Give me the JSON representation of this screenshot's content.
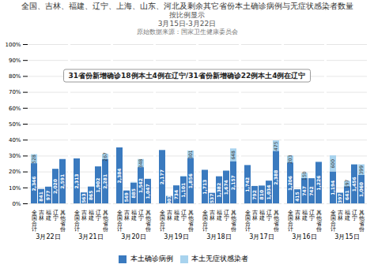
{
  "chart_data": {
    "type": "bar",
    "title": "全国、吉林、福建、辽宁、上海、山东、河北及剩余其它省份本土确诊病例与无症状感染者数量",
    "subtitle": [
      "按比例显示",
      "3月15日-3月22日"
    ],
    "caption": "原始数据来源：国家卫生健康委员会",
    "annotations": [
      {
        "text": "31省份新增确诊18例本土4例在辽宁/31省份新增确诊22例本土4例在辽宁"
      }
    ],
    "categories": [
      "3月22日",
      "3月21日",
      "3月20日",
      "3月19日",
      "3月18日",
      "3月17日",
      "3月16日",
      "3月15日"
    ],
    "groups": [
      "全\n国\n合\n计",
      "吉\n林",
      "福\n建",
      "辽\n宁",
      "其\n他\n省\n份"
    ],
    "series": [
      {
        "name": "本土确诊病例",
        "color": "#3a7abf",
        "values": [
          [
            0.252068,
            0.090362,
            0.104975,
            0.217041,
            0.278393
          ],
          [
            0.282383,
            0.068734,
            0.105604,
            0.232206,
            0.278476
          ],
          [
            0.351312,
            0.080902,
            0.130416,
            0.227233,
            0.154288
          ],
          [
            0.335129,
            0.046644,
            0.112993,
            0.169489,
            0.285714
          ],
          [
            0.210753,
            0.066068,
            0.17003,
            0.205955,
            0.265379
          ],
          [
            0.240575,
            0.109377,
            0.111863,
            0.142798,
            0.329789
          ],
          [
            0.256705,
            0.088335,
            0.159004,
            0.15794,
            0.260962
          ],
          [
            0.200706,
            0.066734,
            0.107749,
            0.244747,
            0.178181
          ]
        ],
        "labels": [
          [
            "2,346",
            "841",
            "977",
            "2,020",
            "2,591"
          ],
          [
            "2,313",
            "563",
            "865",
            "1,902",
            "2,281"
          ],
          [
            "2,384",
            "549",
            "885",
            "1,542",
            "1,047"
          ],
          [
            "2,177",
            "303",
            "734",
            "1,101",
            "1,856"
          ],
          [
            "1,713",
            "537",
            "1,382",
            "1,674",
            "2,157"
          ],
          [
            "1,742",
            "792",
            "810",
            "1,034",
            "2,388"
          ],
          [
            "1,206",
            "415",
            "747",
            "742",
            "1,226"
          ],
          [
            "1,194",
            "397",
            "641",
            "1,456",
            "1,060"
          ]
        ]
      },
      {
        "name": "本土无症状感染者",
        "color": "#a8d3ee",
        "values": [
          [
            0.056732,
            0.00043,
            0,
            0,
            0
          ],
          [
            0,
            0,
            0,
            0,
            0.032597
          ],
          [
            0,
            0,
            0.004568,
            0.051282,
            0
          ],
          [
            0,
            0,
            0,
            0.003695,
            0.046336
          ],
          [
            0,
            0,
            0,
            0.002092,
            0.079724
          ],
          [
            0,
            0,
            0,
            0,
            0.065599
          ],
          [
            0.04321,
            0,
            0.031928,
            0,
            0.001916
          ],
          [
            0.100857,
            0,
            0.033115,
            0.00084,
            0.06707
          ]
        ],
        "labels": [
          [
            "528",
            null,
            null,
            null,
            null
          ],
          [
            null,
            null,
            null,
            null,
            "267"
          ],
          [
            null,
            null,
            null,
            "348",
            null
          ],
          [
            null,
            null,
            null,
            null,
            "301"
          ],
          [
            null,
            null,
            null,
            null,
            "648"
          ],
          [
            null,
            null,
            null,
            null,
            "475"
          ],
          [
            "203",
            null,
            "150",
            null,
            null
          ],
          [
            "600",
            null,
            "197",
            null,
            "399"
          ]
        ]
      }
    ],
    "stacked": true,
    "data_labels": true,
    "ylim": [
      0,
      1
    ],
    "yticks": [
      {
        "value": 0,
        "label": "0%"
      },
      {
        "value": 0.1,
        "label": "10%"
      },
      {
        "value": 0.2,
        "label": "20%"
      },
      {
        "value": 0.3,
        "label": "30%"
      },
      {
        "value": 0.4,
        "label": "40%"
      },
      {
        "value": 0.5,
        "label": "50%"
      },
      {
        "value": 0.6,
        "label": "60%"
      },
      {
        "value": 0.7,
        "label": "70%"
      },
      {
        "value": 0.8,
        "label": "80%"
      },
      {
        "value": 0.9,
        "label": "90%"
      },
      {
        "value": 1,
        "label": "100%"
      }
    ],
    "grid": true,
    "legend": "bottom"
  }
}
